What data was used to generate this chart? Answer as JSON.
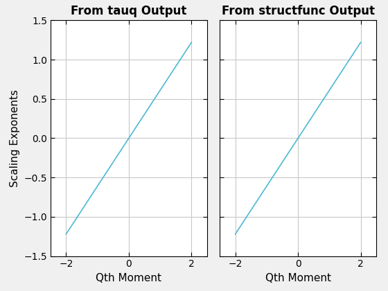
{
  "ax1_title": "From tauq Output",
  "ax2_title": "From structfunc Output",
  "xlabel": "Qth Moment",
  "ylabel": "Scaling Exponents",
  "xlim": [
    -2.5,
    2.5
  ],
  "ylim": [
    -1.5,
    1.5
  ],
  "xticks": [
    -2,
    0,
    2
  ],
  "yticks": [
    -1.5,
    -1.0,
    -0.5,
    0.0,
    0.5,
    1.0,
    1.5
  ],
  "x_start": -2.0,
  "x_end": 2.0,
  "y_start": -1.22,
  "y_end": 1.22,
  "line_color": "#4db8d4",
  "line_width": 1.2,
  "bg_color": "#ffffff",
  "outer_bg": "#f0f0f0",
  "grid_color": "#c8c8c8",
  "spine_color": "#000000",
  "title_fontsize": 12,
  "label_fontsize": 11,
  "tick_fontsize": 10
}
